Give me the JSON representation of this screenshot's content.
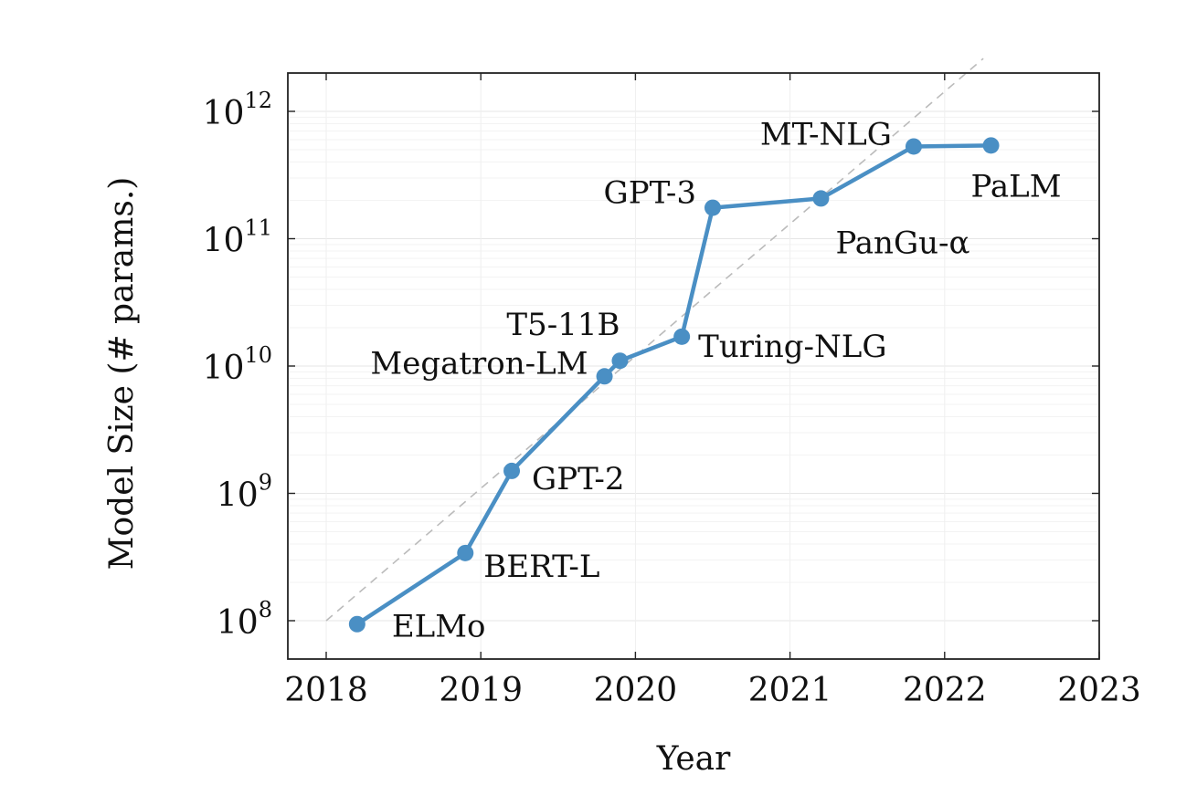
{
  "chart_data": {
    "type": "line",
    "title": "",
    "xlabel": "Year",
    "ylabel": "Model Size (# params.)",
    "xlim": [
      2018,
      2023
    ],
    "ylim": [
      100000000.0,
      1000000000000.0
    ],
    "yscale": "log",
    "x_ticks": [
      2018,
      2019,
      2020,
      2021,
      2022,
      2023
    ],
    "y_ticks": [
      {
        "base": "10",
        "exp": "8"
      },
      {
        "base": "10",
        "exp": "9"
      },
      {
        "base": "10",
        "exp": "10"
      },
      {
        "base": "10",
        "exp": "11"
      },
      {
        "base": "10",
        "exp": "12"
      }
    ],
    "grid": true,
    "legend": "none",
    "series_color": "#4a8fc4",
    "trend_line_color": "#bbbbbb",
    "series": [
      {
        "points": [
          {
            "label": "ELMo",
            "x": 2018.2,
            "y": 94000000.0
          },
          {
            "label": "BERT-L",
            "x": 2018.9,
            "y": 340000000.0
          },
          {
            "label": "GPT-2",
            "x": 2019.2,
            "y": 1500000000.0
          },
          {
            "label": "Megatron-LM",
            "x": 2019.8,
            "y": 8300000000.0
          },
          {
            "label": "T5-11B",
            "x": 2019.9,
            "y": 11000000000.0
          },
          {
            "label": "Turing-NLG",
            "x": 2020.3,
            "y": 17000000000.0
          },
          {
            "label": "GPT-3",
            "x": 2020.5,
            "y": 175000000000.0
          },
          {
            "label": "PanGu-α",
            "x": 2021.2,
            "y": 207000000000.0
          },
          {
            "label": "MT-NLG",
            "x": 2021.8,
            "y": 530000000000.0
          },
          {
            "label": "PaLM",
            "x": 2022.3,
            "y": 540000000000.0
          }
        ]
      }
    ],
    "trend_line": {
      "x": [
        2018,
        2022.25
      ],
      "y": [
        100000000.0,
        2600000000000.0
      ]
    }
  }
}
